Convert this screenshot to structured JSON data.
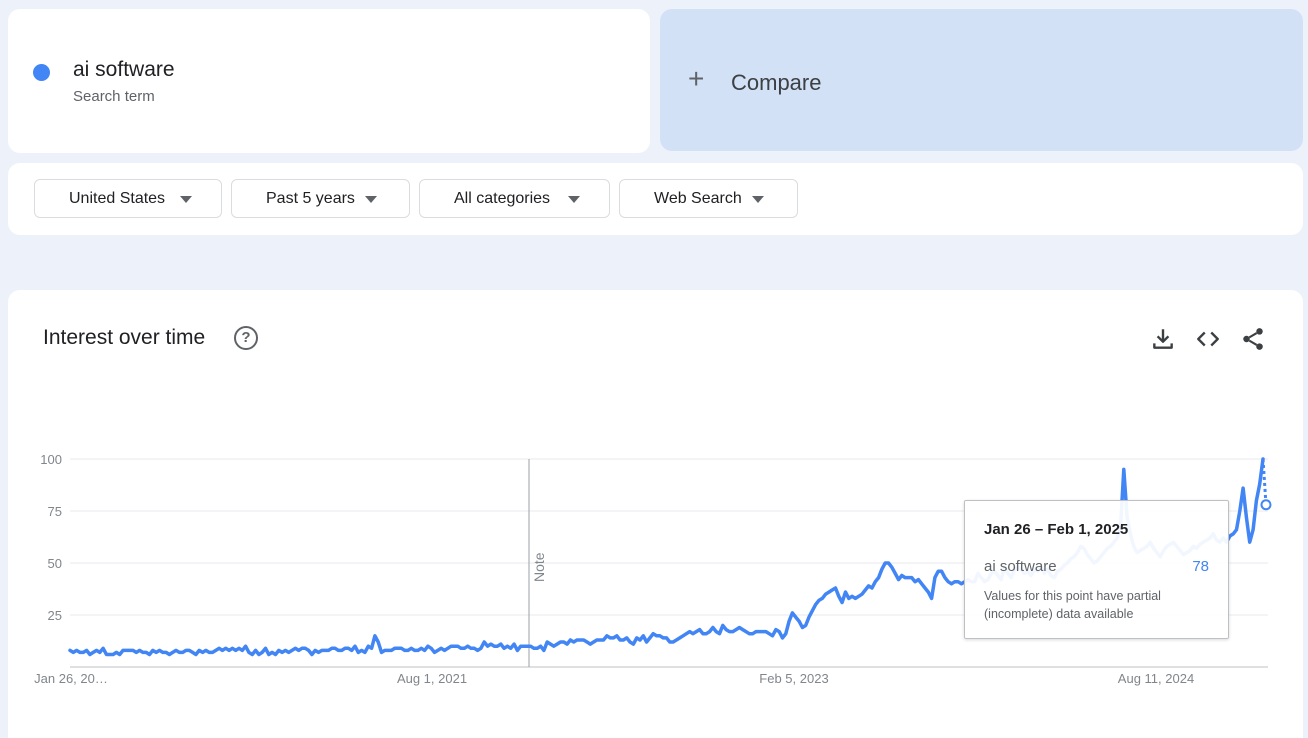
{
  "search_term": {
    "name": "ai software",
    "subtitle": "Search term",
    "color": "#4285f4"
  },
  "compare": {
    "label": "Compare",
    "icon": "plus-icon"
  },
  "filters": [
    {
      "label": "United States"
    },
    {
      "label": "Past 5 years"
    },
    {
      "label": "All categories"
    },
    {
      "label": "Web Search"
    }
  ],
  "chart_section": {
    "title": "Interest over time",
    "icons": [
      "help-icon",
      "download-icon",
      "embed-icon",
      "share-icon"
    ]
  },
  "chart_data": {
    "type": "line",
    "title": "Interest over time",
    "xlabel": "",
    "ylabel": "",
    "ylim": [
      0,
      100
    ],
    "y_ticks": [
      25,
      50,
      75,
      100
    ],
    "x_ticks": [
      "Jan 26, 20…",
      "Aug 1, 2021",
      "Feb 5, 2023",
      "Aug 11, 2024"
    ],
    "note_label": "Note",
    "grid": true,
    "series": [
      {
        "name": "ai software",
        "color": "#4285f4",
        "values": [
          8,
          7,
          8,
          7,
          7,
          8,
          6,
          7,
          8,
          7,
          9,
          6,
          6,
          6,
          7,
          6,
          8,
          8,
          8,
          8,
          7,
          8,
          7,
          7,
          6,
          8,
          7,
          8,
          7,
          7,
          6,
          7,
          8,
          7,
          7,
          8,
          8,
          7,
          6,
          8,
          7,
          8,
          7,
          7,
          8,
          9,
          8,
          9,
          8,
          9,
          8,
          9,
          8,
          10,
          7,
          6,
          8,
          6,
          7,
          9,
          6,
          7,
          6,
          8,
          7,
          8,
          7,
          8,
          9,
          8,
          9,
          9,
          8,
          6,
          8,
          7,
          8,
          8,
          8,
          9,
          9,
          8,
          8,
          9,
          9,
          8,
          10,
          7,
          8,
          7,
          10,
          9,
          15,
          12,
          7,
          8,
          8,
          8,
          9,
          9,
          9,
          8,
          8,
          9,
          8,
          8,
          9,
          8,
          10,
          9,
          7,
          8,
          9,
          8,
          9,
          10,
          10,
          10,
          9,
          9,
          10,
          9,
          9,
          8,
          9,
          12,
          10,
          11,
          10,
          10,
          11,
          9,
          10,
          9,
          11,
          8,
          10,
          10,
          10,
          10,
          9,
          9,
          10,
          8,
          12,
          11,
          10,
          11,
          12,
          12,
          11,
          13,
          12,
          13,
          13,
          13,
          12,
          11,
          12,
          13,
          13,
          13,
          15,
          14,
          14,
          15,
          13,
          13,
          14,
          12,
          11,
          14,
          13,
          15,
          12,
          14,
          16,
          15,
          15,
          14,
          14,
          12,
          12,
          13,
          14,
          15,
          16,
          17,
          16,
          17,
          18,
          16,
          16,
          17,
          19,
          17,
          16,
          20,
          18,
          17,
          17,
          18,
          19,
          18,
          17,
          16,
          16,
          17,
          17,
          17,
          17,
          16,
          15,
          18,
          17,
          14,
          16,
          22,
          26,
          24,
          22,
          19,
          20,
          24,
          27,
          30,
          32,
          33,
          35,
          36,
          37,
          38,
          34,
          31,
          36,
          33,
          34,
          33,
          34,
          35,
          37,
          39,
          38,
          41,
          43,
          47,
          50,
          50,
          48,
          45,
          42,
          44,
          43,
          43,
          43,
          41,
          42,
          40,
          38,
          36,
          33,
          43,
          46,
          46,
          43,
          41,
          40,
          41,
          41,
          40,
          41,
          42,
          41,
          41,
          45,
          43,
          41,
          42,
          45,
          46,
          44,
          42,
          48,
          45,
          43,
          47,
          48,
          47,
          45,
          46,
          44,
          47,
          46,
          48,
          45,
          47,
          44,
          43,
          46,
          47,
          49,
          50,
          52,
          53,
          55,
          58,
          57,
          54,
          52,
          50,
          51,
          53,
          55,
          57,
          58,
          60,
          62,
          67,
          95,
          72,
          64,
          58,
          55,
          56,
          57,
          58,
          60,
          57,
          55,
          53,
          56,
          58,
          59,
          60,
          58,
          56,
          54,
          55,
          56,
          58,
          57,
          59,
          60,
          61,
          62,
          64,
          61,
          60,
          62,
          60,
          63,
          64,
          66,
          75,
          86,
          72,
          60,
          66,
          80,
          88,
          100
        ],
        "last_value_partial": 78
      }
    ]
  },
  "tooltip": {
    "date": "Jan 26 – Feb 1, 2025",
    "term": "ai software",
    "value": "78",
    "note": "Values for this point have partial (incomplete) data available"
  }
}
